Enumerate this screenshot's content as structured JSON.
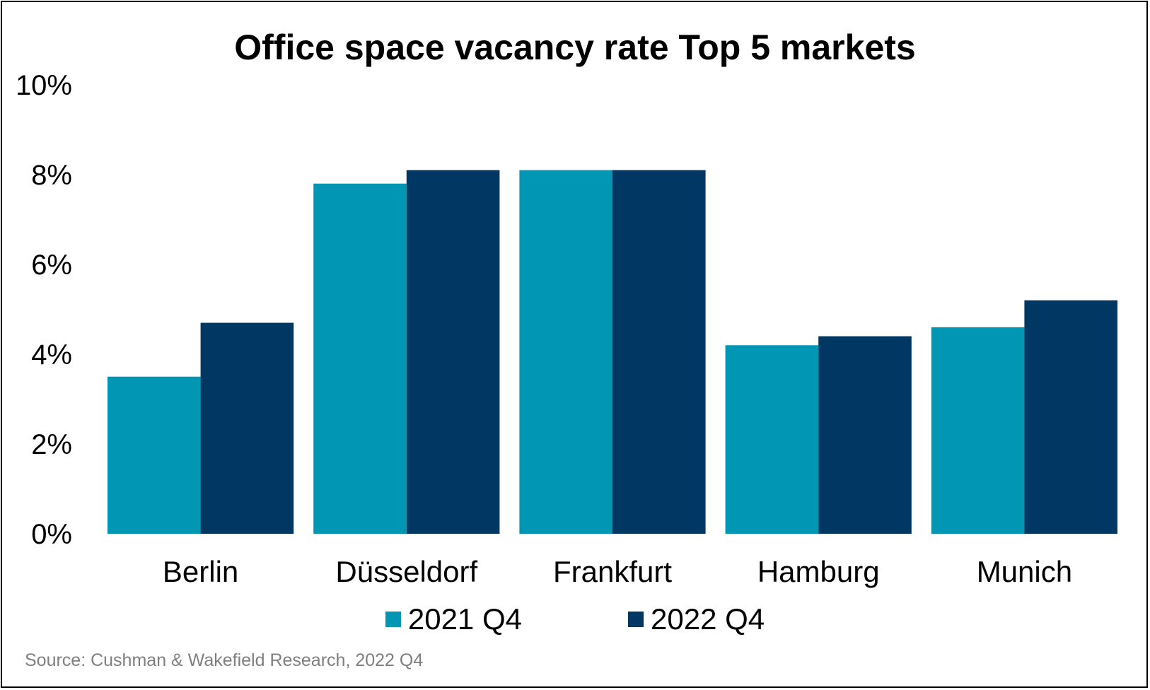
{
  "chart_data": {
    "type": "bar",
    "title": "Office space vacancy rate Top 5 markets",
    "categories": [
      "Berlin",
      "Düsseldorf",
      "Frankfurt",
      "Hamburg",
      "Munich"
    ],
    "series": [
      {
        "name": "2021 Q4",
        "color": "#0096b4",
        "values": [
          3.5,
          7.8,
          8.1,
          4.2,
          4.6
        ]
      },
      {
        "name": "2022 Q4",
        "color": "#003763",
        "values": [
          4.7,
          8.1,
          8.1,
          4.4,
          5.2
        ]
      }
    ],
    "ylim": [
      0,
      10
    ],
    "yticks": [
      0,
      2,
      4,
      6,
      8,
      10
    ],
    "ytick_labels": [
      "0%",
      "2%",
      "4%",
      "6%",
      "8%",
      "10%"
    ],
    "xlabel": "",
    "ylabel": "",
    "grid": false,
    "legend_position": "bottom"
  },
  "source": "Source: Cushman & Wakefield Research, 2022 Q4"
}
